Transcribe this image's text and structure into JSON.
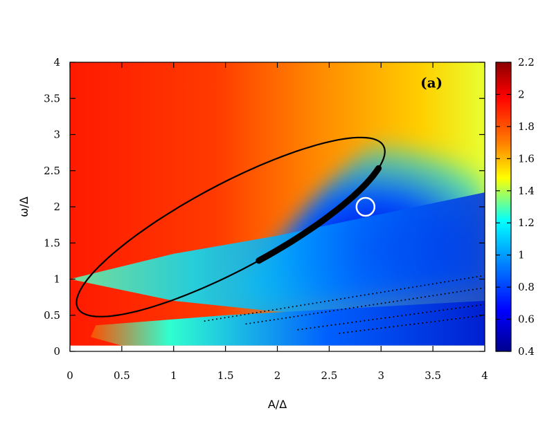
{
  "chart_data": {
    "type": "heatmap",
    "panel_label": "(a)",
    "xlabel": "A/Δ",
    "ylabel": "ω/Δ",
    "xlim": [
      0,
      4
    ],
    "ylim": [
      0,
      4
    ],
    "x_ticks": [
      "0",
      "0.5",
      "1",
      "1.5",
      "2",
      "2.5",
      "3",
      "3.5",
      "4"
    ],
    "y_ticks": [
      "0",
      "0.5",
      "1",
      "1.5",
      "2",
      "2.5",
      "3",
      "3.5",
      "4"
    ],
    "colorbar": {
      "range": [
        0.4,
        2.2
      ],
      "ticks": [
        "0.4",
        "0.6",
        "0.8",
        "1",
        "1.2",
        "1.4",
        "1.6",
        "1.8",
        "2",
        "2.2"
      ],
      "colormap": [
        "#00008c",
        "#0000ff",
        "#0080ff",
        "#00ffff",
        "#ffff00",
        "#ff8000",
        "#ff0000",
        "#8c0000"
      ]
    },
    "resonance_contour": {
      "description": "closed black loop",
      "center": [
        1.55,
        1.72
      ],
      "extent_x": [
        0.5,
        2.97
      ],
      "extent_y": [
        0.82,
        2.58
      ]
    },
    "marker": {
      "shape": "circle",
      "x": 2.85,
      "y": 2.0,
      "color": "#ffffff"
    },
    "excluded_band": {
      "y_range": [
        0,
        0.08
      ],
      "color": "#ffffff"
    }
  }
}
